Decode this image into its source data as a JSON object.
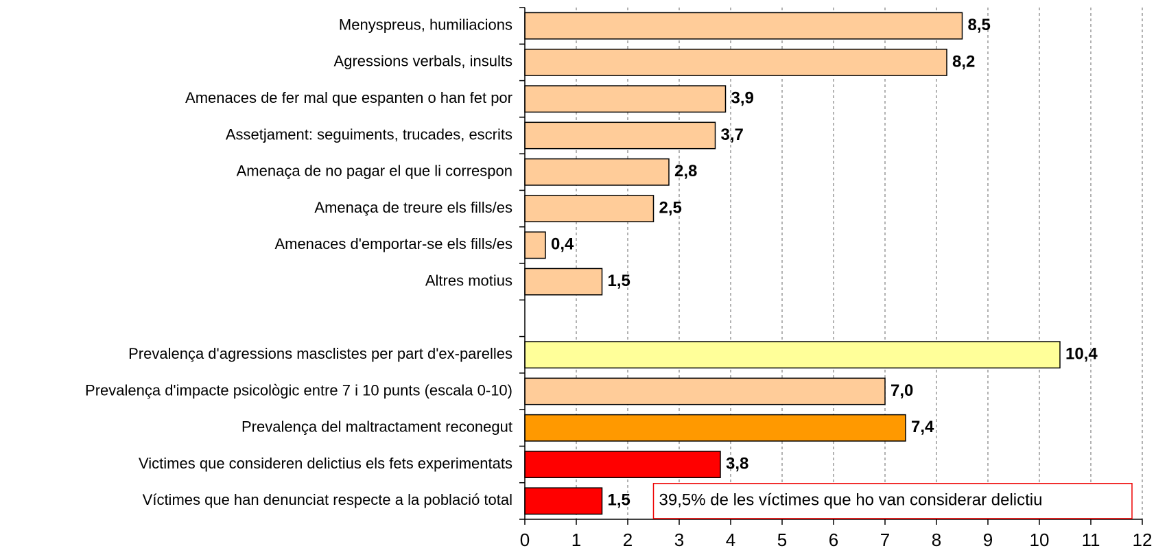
{
  "chart_data": {
    "type": "barh",
    "categories": [
      "Menyspreus, humiliacions",
      "Agressions verbals, insults",
      "Amenaces de fer mal que espanten o han fet por",
      "Assetjament: seguiments, trucades, escrits",
      "Amenaça de no pagar el que li correspon",
      "Amenaça de treure els fills/es",
      "Amenaces d'emportar-se els fills/es",
      "Altres motius",
      null,
      "Prevalença d'agressions masclistes per part d'ex-parelles",
      "Prevalença d'impacte psicològic entre 7 i 10 punts (escala 0-10)",
      "Prevalença del maltractament reconegut",
      "Victimes que consideren delictius els fets experimentats",
      "Víctimes que han denunciat respecte a la població total"
    ],
    "values": [
      8.5,
      8.2,
      3.9,
      3.7,
      2.8,
      2.5,
      0.4,
      1.5,
      null,
      10.4,
      7.0,
      7.4,
      3.8,
      1.5
    ],
    "value_labels": [
      "8,5",
      "8,2",
      "3,9",
      "3,7",
      "2,8",
      "2,5",
      "0,4",
      "1,5",
      null,
      "10,4",
      "7,0",
      "7,4",
      "3,8",
      "1,5"
    ],
    "colors": [
      "#FFCC99",
      "#FFCC99",
      "#FFCC99",
      "#FFCC99",
      "#FFCC99",
      "#FFCC99",
      "#FFCC99",
      "#FFCC99",
      null,
      "#FFFF99",
      "#FFCC99",
      "#FF9900",
      "#FF0000",
      "#FF0000"
    ],
    "xlim": [
      0,
      12
    ],
    "xticks": [
      0,
      1,
      2,
      3,
      4,
      5,
      6,
      7,
      8,
      9,
      10,
      11,
      12
    ],
    "grid": true,
    "annotation": "39,5% de les víctimes que ho van considerar delictiu"
  }
}
